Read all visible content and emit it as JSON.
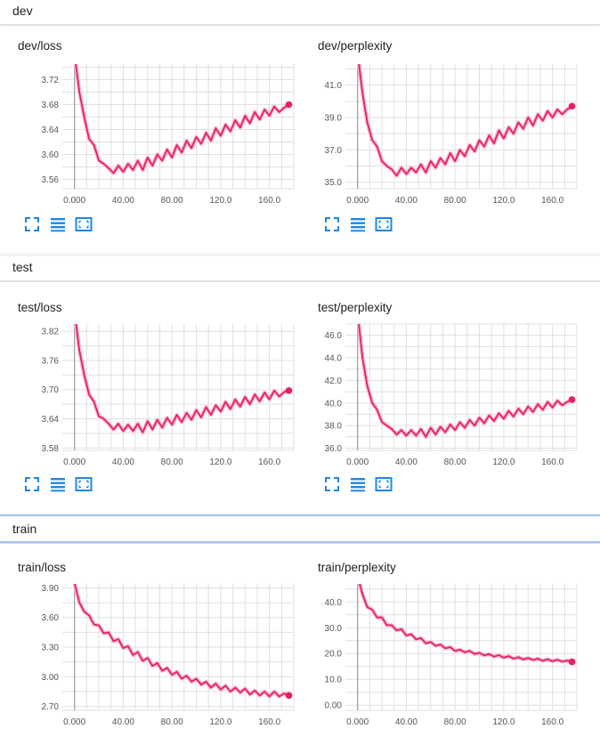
{
  "groups": [
    {
      "title": "dev",
      "charts": [
        0,
        1
      ]
    },
    {
      "title": "test",
      "charts": [
        2,
        3
      ]
    },
    {
      "title": "train",
      "charts": [
        4,
        5
      ]
    }
  ],
  "colors": {
    "line": "#e91e63",
    "smooth_shadow": "#f8bbd0",
    "grid": "#e0e0e0",
    "axis": "#9e9e9e",
    "icon": "#1e88e5"
  },
  "icons": [
    "fullscreen-icon",
    "list-icon",
    "fit-domain-icon"
  ],
  "chart_data": [
    {
      "type": "line",
      "title": "dev/loss",
      "xlim": [
        -10,
        180
      ],
      "ylim": [
        3.545,
        3.745
      ],
      "xticks": [
        0,
        40,
        80,
        120,
        160
      ],
      "xtick_labels": [
        "0.000",
        "40.00",
        "80.00",
        "120.0",
        "160.0"
      ],
      "yticks": [
        3.56,
        3.6,
        3.64,
        3.68,
        3.72
      ],
      "ytick_labels": [
        "3.56",
        "3.60",
        "3.64",
        "3.68",
        "3.72"
      ],
      "x": [
        0,
        4,
        8,
        12,
        16,
        20,
        24,
        28,
        32,
        36,
        40,
        44,
        48,
        52,
        56,
        60,
        64,
        68,
        72,
        76,
        80,
        84,
        88,
        92,
        96,
        100,
        104,
        108,
        112,
        116,
        120,
        124,
        128,
        132,
        136,
        140,
        144,
        148,
        152,
        156,
        160,
        164,
        168,
        172,
        176
      ],
      "y": [
        3.76,
        3.7,
        3.66,
        3.625,
        3.615,
        3.59,
        3.585,
        3.578,
        3.57,
        3.582,
        3.572,
        3.585,
        3.575,
        3.59,
        3.575,
        3.595,
        3.582,
        3.6,
        3.59,
        3.608,
        3.595,
        3.615,
        3.603,
        3.622,
        3.61,
        3.628,
        3.617,
        3.635,
        3.622,
        3.642,
        3.63,
        3.648,
        3.637,
        3.655,
        3.643,
        3.662,
        3.65,
        3.668,
        3.656,
        3.672,
        3.662,
        3.677,
        3.668,
        3.675,
        3.68
      ],
      "grid": true
    },
    {
      "type": "line",
      "title": "dev/perplexity",
      "xlim": [
        -10,
        180
      ],
      "ylim": [
        34.6,
        42.3
      ],
      "xticks": [
        0,
        40,
        80,
        120,
        160
      ],
      "xtick_labels": [
        "0.000",
        "40.00",
        "80.00",
        "120.0",
        "160.0"
      ],
      "yticks": [
        35,
        37,
        39,
        41
      ],
      "ytick_labels": [
        "35.0",
        "37.0",
        "39.0",
        "41.0"
      ],
      "x": [
        0,
        4,
        8,
        12,
        16,
        20,
        24,
        28,
        32,
        36,
        40,
        44,
        48,
        52,
        56,
        60,
        64,
        68,
        72,
        76,
        80,
        84,
        88,
        92,
        96,
        100,
        104,
        108,
        112,
        116,
        120,
        124,
        128,
        132,
        136,
        140,
        144,
        148,
        152,
        156,
        160,
        164,
        168,
        172,
        176
      ],
      "y": [
        43,
        40.5,
        38.7,
        37.6,
        37.2,
        36.3,
        36.0,
        35.8,
        35.4,
        35.9,
        35.5,
        35.9,
        35.6,
        36.1,
        35.6,
        36.3,
        35.9,
        36.5,
        36.1,
        36.8,
        36.3,
        37.0,
        36.6,
        37.3,
        36.9,
        37.6,
        37.2,
        37.9,
        37.4,
        38.2,
        37.7,
        38.4,
        38.0,
        38.7,
        38.3,
        39.0,
        38.5,
        39.2,
        38.8,
        39.4,
        39.0,
        39.5,
        39.2,
        39.5,
        39.7
      ],
      "grid": true
    },
    {
      "type": "line",
      "title": "test/loss",
      "xlim": [
        -10,
        180
      ],
      "ylim": [
        3.575,
        3.835
      ],
      "xticks": [
        0,
        40,
        80,
        120,
        160
      ],
      "xtick_labels": [
        "0.000",
        "40.00",
        "80.00",
        "120.0",
        "160.0"
      ],
      "yticks": [
        3.58,
        3.64,
        3.7,
        3.76,
        3.82
      ],
      "ytick_labels": [
        "3.58",
        "3.64",
        "3.70",
        "3.76",
        "3.82"
      ],
      "x": [
        0,
        4,
        8,
        12,
        16,
        20,
        24,
        28,
        32,
        36,
        40,
        44,
        48,
        52,
        56,
        60,
        64,
        68,
        72,
        76,
        80,
        84,
        88,
        92,
        96,
        100,
        104,
        108,
        112,
        116,
        120,
        124,
        128,
        132,
        136,
        140,
        144,
        148,
        152,
        156,
        160,
        164,
        168,
        172,
        176
      ],
      "y": [
        3.86,
        3.78,
        3.73,
        3.69,
        3.675,
        3.645,
        3.64,
        3.63,
        3.618,
        3.63,
        3.615,
        3.628,
        3.615,
        3.63,
        3.612,
        3.635,
        3.618,
        3.638,
        3.622,
        3.642,
        3.628,
        3.648,
        3.633,
        3.652,
        3.638,
        3.658,
        3.643,
        3.664,
        3.648,
        3.668,
        3.655,
        3.675,
        3.66,
        3.68,
        3.665,
        3.685,
        3.67,
        3.69,
        3.676,
        3.694,
        3.68,
        3.698,
        3.686,
        3.695,
        3.698
      ],
      "grid": true
    },
    {
      "type": "line",
      "title": "test/perplexity",
      "xlim": [
        -10,
        180
      ],
      "ylim": [
        35.8,
        47
      ],
      "xticks": [
        0,
        40,
        80,
        120,
        160
      ],
      "xtick_labels": [
        "0.000",
        "40.00",
        "80.00",
        "120.0",
        "160.0"
      ],
      "yticks": [
        36,
        38,
        40,
        42,
        44,
        46
      ],
      "ytick_labels": [
        "36.0",
        "38.0",
        "40.0",
        "42.0",
        "44.0",
        "46.0"
      ],
      "x": [
        0,
        4,
        8,
        12,
        16,
        20,
        24,
        28,
        32,
        36,
        40,
        44,
        48,
        52,
        56,
        60,
        64,
        68,
        72,
        76,
        80,
        84,
        88,
        92,
        96,
        100,
        104,
        108,
        112,
        116,
        120,
        124,
        128,
        132,
        136,
        140,
        144,
        148,
        152,
        156,
        160,
        164,
        168,
        172,
        176
      ],
      "y": [
        48,
        44,
        41.5,
        40.0,
        39.4,
        38.3,
        38.0,
        37.7,
        37.2,
        37.6,
        37.1,
        37.6,
        37.1,
        37.7,
        37.0,
        37.8,
        37.2,
        37.9,
        37.4,
        38.1,
        37.6,
        38.3,
        37.8,
        38.5,
        38.0,
        38.7,
        38.2,
        38.9,
        38.4,
        39.1,
        38.6,
        39.3,
        38.8,
        39.5,
        39.0,
        39.7,
        39.2,
        39.9,
        39.4,
        40.1,
        39.6,
        40.2,
        39.8,
        40.1,
        40.3
      ],
      "grid": true
    },
    {
      "type": "line",
      "title": "train/loss",
      "xlim": [
        -10,
        180
      ],
      "ylim": [
        2.66,
        3.94
      ],
      "xticks": [
        0,
        40,
        80,
        120,
        160
      ],
      "xtick_labels": [
        "0.000",
        "40.00",
        "80.00",
        "120.0",
        "160.0"
      ],
      "yticks": [
        2.7,
        3.0,
        3.3,
        3.6,
        3.9
      ],
      "ytick_labels": [
        "2.70",
        "3.00",
        "3.30",
        "3.60",
        "3.90"
      ],
      "x": [
        0,
        4,
        8,
        12,
        16,
        20,
        24,
        28,
        32,
        36,
        40,
        44,
        48,
        52,
        56,
        60,
        64,
        68,
        72,
        76,
        80,
        84,
        88,
        92,
        96,
        100,
        104,
        108,
        112,
        116,
        120,
        124,
        128,
        132,
        136,
        140,
        144,
        148,
        152,
        156,
        160,
        164,
        168,
        172,
        176
      ],
      "y": [
        3.95,
        3.75,
        3.66,
        3.62,
        3.53,
        3.52,
        3.44,
        3.45,
        3.36,
        3.38,
        3.29,
        3.31,
        3.22,
        3.25,
        3.16,
        3.19,
        3.11,
        3.14,
        3.06,
        3.09,
        3.02,
        3.05,
        2.98,
        3.01,
        2.95,
        2.98,
        2.92,
        2.95,
        2.89,
        2.93,
        2.87,
        2.91,
        2.85,
        2.89,
        2.84,
        2.88,
        2.82,
        2.86,
        2.81,
        2.85,
        2.8,
        2.85,
        2.8,
        2.83,
        2.81
      ],
      "grid": true
    },
    {
      "type": "line",
      "title": "train/perplexity",
      "xlim": [
        -10,
        180
      ],
      "ylim": [
        -2,
        47
      ],
      "xticks": [
        0,
        40,
        80,
        120,
        160
      ],
      "xtick_labels": [
        "0.000",
        "40.00",
        "80.00",
        "120.0",
        "160.0"
      ],
      "yticks": [
        0,
        10,
        20,
        30,
        40
      ],
      "ytick_labels": [
        "0.00",
        "10.0",
        "20.0",
        "30.0",
        "40.0"
      ],
      "x": [
        0,
        4,
        8,
        12,
        16,
        20,
        24,
        28,
        32,
        36,
        40,
        44,
        48,
        52,
        56,
        60,
        64,
        68,
        72,
        76,
        80,
        84,
        88,
        92,
        96,
        100,
        104,
        108,
        112,
        116,
        120,
        124,
        128,
        132,
        136,
        140,
        144,
        148,
        152,
        156,
        160,
        164,
        168,
        172,
        176
      ],
      "y": [
        50,
        43,
        38,
        37,
        34,
        34,
        31,
        31,
        29,
        29.5,
        27,
        27.5,
        25.5,
        26,
        24,
        24.5,
        23,
        23.5,
        22,
        22.5,
        21,
        21.5,
        20.5,
        21,
        19.8,
        20.3,
        19.3,
        19.8,
        18.8,
        19.4,
        18.4,
        19,
        18,
        18.6,
        17.7,
        18.3,
        17.5,
        18,
        17.2,
        17.8,
        17,
        17.6,
        16.9,
        17.3,
        16.8
      ],
      "grid": true
    }
  ]
}
